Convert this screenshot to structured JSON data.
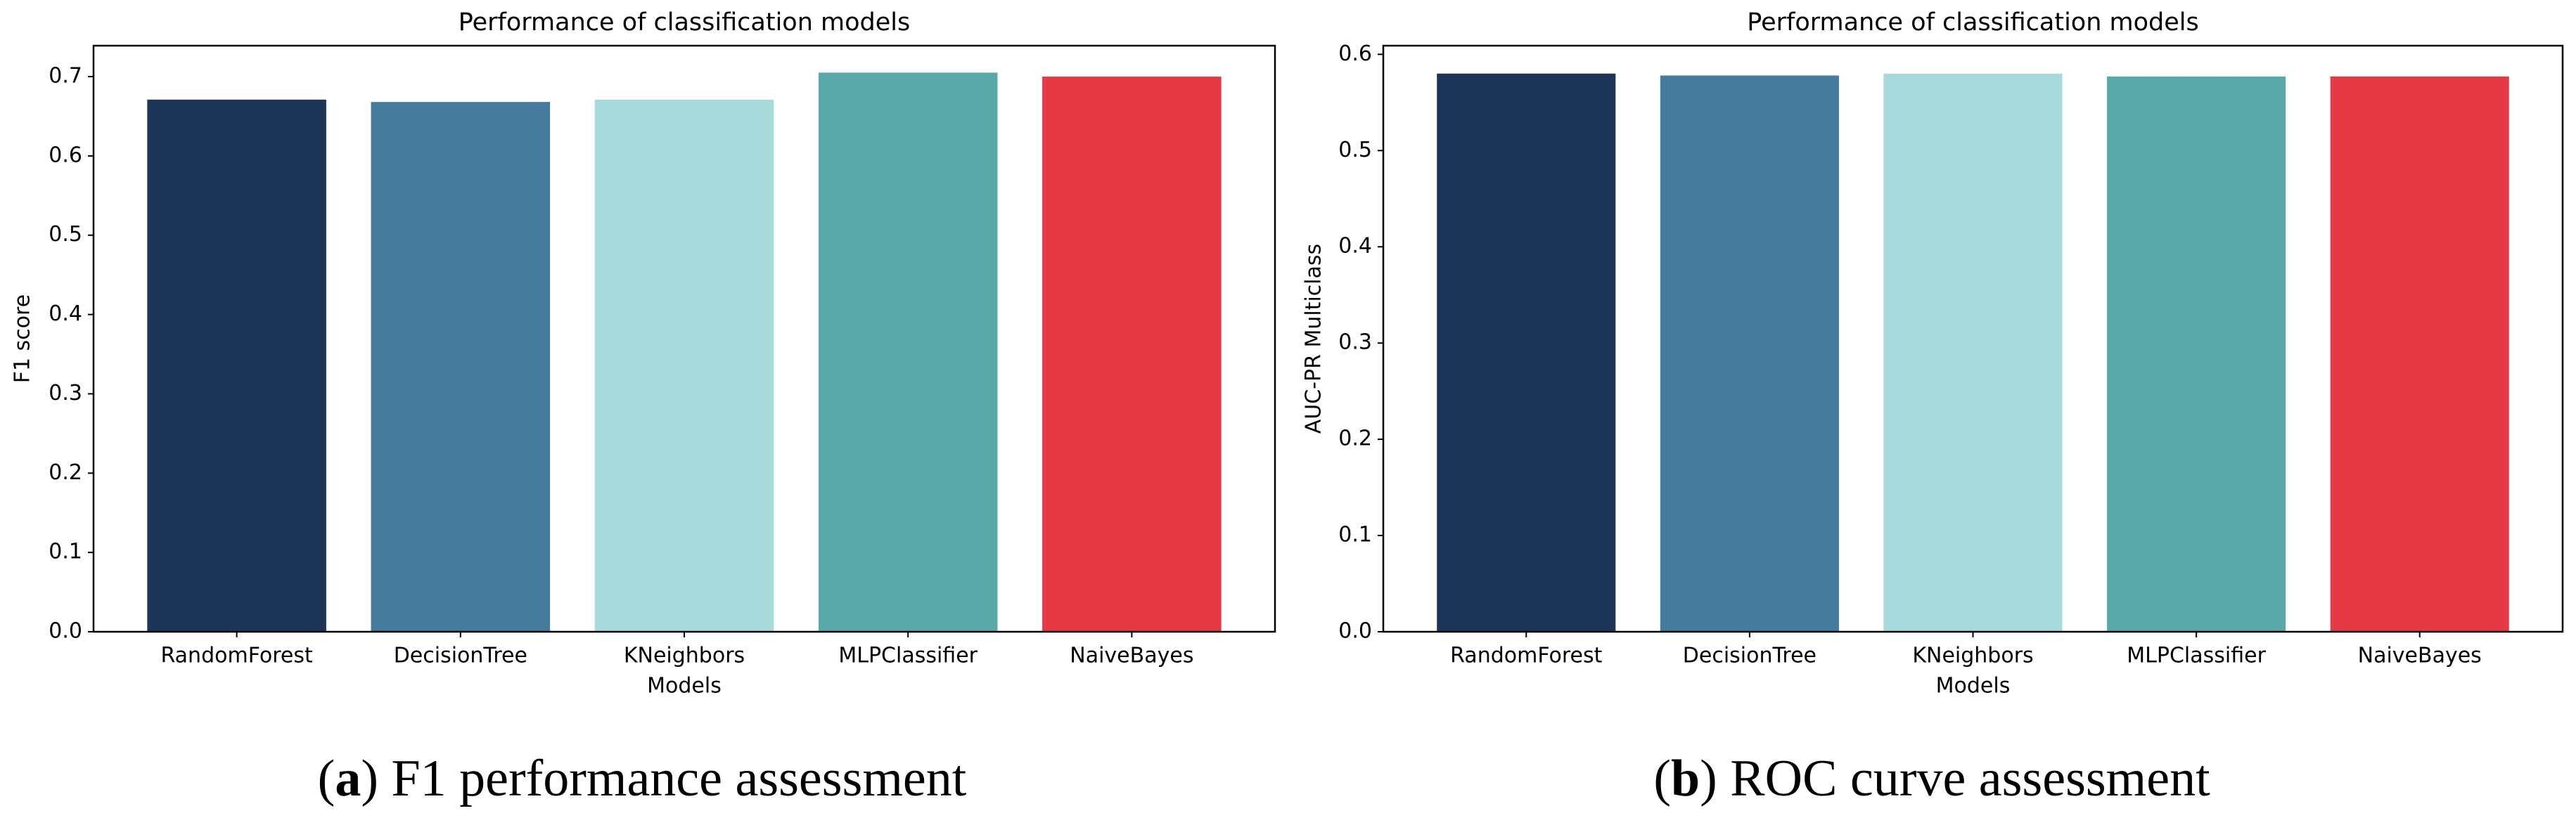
{
  "chart_data": [
    {
      "type": "bar",
      "title": "Performance of classification models",
      "x_label": "Models",
      "y_label": "F1 score",
      "categories": [
        "RandomForest",
        "DecisionTree",
        "KNeighbors",
        "MLPClassifier",
        "NaiveBayes"
      ],
      "values": [
        0.671,
        0.668,
        0.671,
        0.705,
        0.7
      ],
      "colors": [
        "#1d3557",
        "#457b9d",
        "#a8dadc",
        "#5aa8a8",
        "#e63946"
      ],
      "ylim": [
        0,
        0.739
      ],
      "yticks": [
        {
          "value": 0,
          "label": "0.0"
        },
        0.1,
        0.2,
        0.3,
        0.4,
        0.5,
        0.6,
        0.7
      ],
      "caption": [
        "(",
        "a",
        ") F1 performance assessment"
      ]
    },
    {
      "type": "bar",
      "title": "Performance of classification models",
      "x_label": "Models",
      "y_label": "AUC-PR Multiclass",
      "categories": [
        "RandomForest",
        "DecisionTree",
        "KNeighbors",
        "MLPClassifier",
        "NaiveBayes"
      ],
      "values": [
        0.58,
        0.578,
        0.58,
        0.577,
        0.577
      ],
      "colors": [
        "#1d3557",
        "#457b9d",
        "#a8dadc",
        "#5aa8a8",
        "#e63946"
      ],
      "ylim": [
        0,
        0.609
      ],
      "yticks": [
        {
          "value": 0,
          "label": "0.0"
        },
        0.1,
        0.2,
        0.3,
        0.4,
        0.5,
        0.6
      ],
      "caption": [
        "(",
        "b",
        ") ROC curve assessment"
      ]
    }
  ]
}
